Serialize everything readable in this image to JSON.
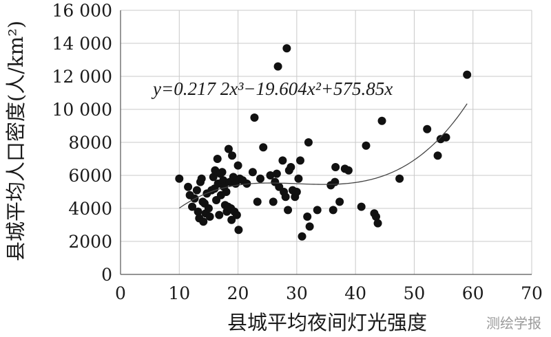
{
  "chart_data": {
    "type": "scatter",
    "xlabel": "县城平均夜间灯光强度",
    "ylabel": "县城平均人口密度(人/km²)",
    "xlim": [
      0,
      70
    ],
    "ylim": [
      0,
      16000
    ],
    "x_ticks": [
      "0",
      "10",
      "20",
      "30",
      "40",
      "50",
      "60",
      "70"
    ],
    "y_ticks": [
      "0",
      "2000",
      "4000",
      "6000",
      "8000",
      "10 000",
      "12 000",
      "14 000",
      "16 000"
    ],
    "grid": true,
    "trendline": {
      "type": "polynomial",
      "equation": "y=0.217 2x³−19.604x²+575.85x",
      "coefficients": {
        "a3": 0.2172,
        "a2": -19.604,
        "a1": 575.85
      },
      "x_range": [
        10,
        59
      ]
    },
    "points": [
      [
        10,
        5800
      ],
      [
        11.5,
        5300
      ],
      [
        11.8,
        4800
      ],
      [
        12.2,
        4100
      ],
      [
        12.6,
        4600
      ],
      [
        13,
        5100
      ],
      [
        13.2,
        3800
      ],
      [
        13.4,
        3400
      ],
      [
        13.6,
        5600
      ],
      [
        13.8,
        5800
      ],
      [
        14,
        4400
      ],
      [
        14.1,
        3200
      ],
      [
        14.3,
        4300
      ],
      [
        14.5,
        3700
      ],
      [
        14.7,
        4900
      ],
      [
        15,
        4000
      ],
      [
        15.2,
        3500
      ],
      [
        15.5,
        5100
      ],
      [
        15.8,
        5900
      ],
      [
        16,
        5200
      ],
      [
        16.1,
        6300
      ],
      [
        16.3,
        4500
      ],
      [
        16.5,
        7000
      ],
      [
        16.6,
        5500
      ],
      [
        16.8,
        3600
      ],
      [
        17,
        6100
      ],
      [
        17.1,
        4800
      ],
      [
        17.3,
        6200
      ],
      [
        17.5,
        5700
      ],
      [
        17.6,
        5300
      ],
      [
        17.8,
        4200
      ],
      [
        18,
        5000
      ],
      [
        18.1,
        3800
      ],
      [
        18.3,
        4100
      ],
      [
        18.4,
        7600
      ],
      [
        18.6,
        5600
      ],
      [
        18.8,
        4000
      ],
      [
        18.9,
        3300
      ],
      [
        19,
        7200
      ],
      [
        19.2,
        5900
      ],
      [
        19.4,
        3800
      ],
      [
        19.6,
        5500
      ],
      [
        19.8,
        3600
      ],
      [
        20,
        6600
      ],
      [
        20.1,
        2700
      ],
      [
        20.3,
        5800
      ],
      [
        20.8,
        5700
      ],
      [
        21.5,
        5500
      ],
      [
        22.5,
        6200
      ],
      [
        22.8,
        9500
      ],
      [
        23.3,
        4400
      ],
      [
        23.8,
        5800
      ],
      [
        24.3,
        7700
      ],
      [
        25.5,
        6000
      ],
      [
        26,
        4400
      ],
      [
        26.3,
        5600
      ],
      [
        26.6,
        6100
      ],
      [
        26.8,
        12600
      ],
      [
        27,
        5300
      ],
      [
        27.6,
        6900
      ],
      [
        27.8,
        5000
      ],
      [
        28.1,
        4700
      ],
      [
        28.3,
        13700
      ],
      [
        28.5,
        3900
      ],
      [
        28.7,
        6300
      ],
      [
        29,
        6500
      ],
      [
        29.3,
        5100
      ],
      [
        29.7,
        4700
      ],
      [
        30,
        5000
      ],
      [
        30.3,
        5800
      ],
      [
        30.6,
        6900
      ],
      [
        30.9,
        2300
      ],
      [
        31.8,
        3500
      ],
      [
        32,
        8000
      ],
      [
        32.2,
        2900
      ],
      [
        33.5,
        3900
      ],
      [
        35.8,
        5400
      ],
      [
        36.2,
        3900
      ],
      [
        36.5,
        5600
      ],
      [
        36.6,
        6500
      ],
      [
        37.3,
        4400
      ],
      [
        38.2,
        6400
      ],
      [
        38.8,
        6300
      ],
      [
        41,
        4100
      ],
      [
        41.8,
        7800
      ],
      [
        43.2,
        3700
      ],
      [
        43.5,
        3500
      ],
      [
        43.8,
        3100
      ],
      [
        44.5,
        9300
      ],
      [
        47.5,
        5800
      ],
      [
        52.2,
        8800
      ],
      [
        54,
        7200
      ],
      [
        54.5,
        8200
      ],
      [
        55.4,
        8300
      ],
      [
        59,
        12100
      ]
    ]
  },
  "watermark": "测绘学报"
}
